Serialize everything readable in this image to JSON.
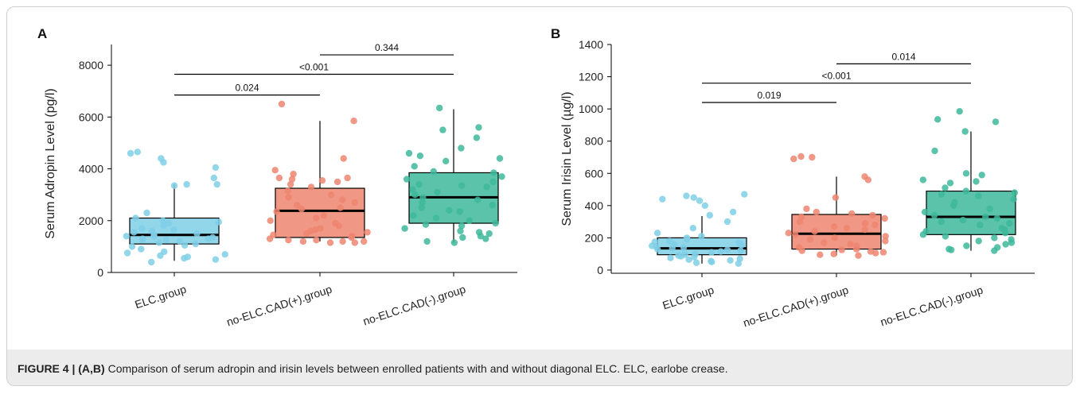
{
  "caption": {
    "label": "FIGURE 4 | (A,B)",
    "text": " Comparison of serum adropin and irisin levels between enrolled patients with and without diagonal ELC. ELC, earlobe crease."
  },
  "colors": {
    "ELC": "#7fcfe6",
    "CADpos": "#ef8570",
    "CADneg": "#3eb89a"
  },
  "chart_data": [
    {
      "type": "box",
      "panel": "A",
      "ylabel": "Serum Adropin Level (pg/l)",
      "xlabel": "",
      "ylim": [
        0,
        8800
      ],
      "yticks": [
        0,
        2000,
        4000,
        6000,
        8000
      ],
      "categories": [
        "ELC.group",
        "no-ELC.CAD(+).group",
        "no-ELC.CAD(-).group"
      ],
      "boxes": [
        {
          "q1": 1100,
          "median": 1450,
          "q3": 2100,
          "whisker_low": 450,
          "whisker_high": 3400
        },
        {
          "q1": 1350,
          "median": 2380,
          "q3": 3250,
          "whisker_low": 1200,
          "whisker_high": 5850
        },
        {
          "q1": 1900,
          "median": 2900,
          "q3": 3850,
          "whisker_low": 1150,
          "whisker_high": 6300
        }
      ],
      "points": [
        [
          3650,
          3400,
          4600,
          4250,
          4050,
          4650,
          4400,
          3350,
          3400,
          2300,
          2100,
          1950,
          1800,
          1700,
          1650,
          1600,
          1550,
          1500,
          1450,
          1400,
          1400,
          1350,
          1300,
          1300,
          1250,
          1250,
          1200,
          1150,
          1100,
          1050,
          1000,
          900,
          800,
          750,
          700,
          650,
          600,
          550,
          500,
          400,
          2000,
          1900
        ],
        [
          6500,
          5850,
          4400,
          3950,
          3800,
          3650,
          3650,
          3600,
          3550,
          3500,
          3400,
          3300,
          3150,
          3000,
          2900,
          2800,
          2700,
          2600,
          2500,
          2450,
          2350,
          2200,
          2100,
          2000,
          1900,
          1800,
          1700,
          1650,
          1600,
          1550,
          1500,
          1450,
          1400,
          1350,
          1300,
          1250,
          1250,
          1200,
          1200,
          1200,
          1150,
          1150
        ],
        [
          6350,
          5600,
          5500,
          5200,
          4800,
          4600,
          4500,
          4400,
          4300,
          4100,
          3900,
          3850,
          3700,
          3600,
          3500,
          3400,
          3350,
          3300,
          3200,
          3100,
          3000,
          2900,
          2800,
          2700,
          2600,
          2500,
          2400,
          2350,
          2200,
          2100,
          2000,
          1900,
          1850,
          1800,
          1700,
          1600,
          1550,
          1500,
          1400,
          1350,
          1300,
          1200,
          1150
        ]
      ],
      "comparisons": [
        {
          "from": 0,
          "to": 1,
          "y": 6850,
          "label": "0.024"
        },
        {
          "from": 0,
          "to": 2,
          "y": 7650,
          "label": "<0.001"
        },
        {
          "from": 1,
          "to": 2,
          "y": 8400,
          "label": "0.344"
        }
      ]
    },
    {
      "type": "box",
      "panel": "B",
      "ylabel": "Serum Irisin Level (µg/l)",
      "xlabel": "",
      "ylim": [
        -20,
        1400
      ],
      "yticks": [
        0,
        200,
        400,
        600,
        800,
        1000,
        1200,
        1400
      ],
      "categories": [
        "ELC.group",
        "no-ELC.CAD(+).group",
        "no-ELC.CAD(-).group"
      ],
      "boxes": [
        {
          "q1": 95,
          "median": 135,
          "q3": 200,
          "whisker_low": 40,
          "whisker_high": 335
        },
        {
          "q1": 130,
          "median": 225,
          "q3": 345,
          "whisker_low": 90,
          "whisker_high": 580
        },
        {
          "q1": 220,
          "median": 330,
          "q3": 490,
          "whisker_low": 120,
          "whisker_high": 860
        }
      ],
      "points": [
        [
          470,
          460,
          450,
          440,
          430,
          400,
          360,
          340,
          300,
          260,
          230,
          210,
          200,
          190,
          180,
          175,
          170,
          160,
          155,
          150,
          145,
          140,
          135,
          130,
          125,
          120,
          115,
          110,
          100,
          95,
          90,
          85,
          80,
          75,
          70,
          65,
          60,
          55,
          50,
          45,
          40
        ],
        [
          705,
          700,
          690,
          580,
          560,
          450,
          380,
          360,
          350,
          340,
          330,
          320,
          300,
          290,
          280,
          270,
          260,
          250,
          240,
          230,
          220,
          210,
          200,
          190,
          180,
          170,
          160,
          150,
          140,
          130,
          125,
          120,
          115,
          110,
          105,
          100,
          95,
          90
        ],
        [
          985,
          935,
          920,
          860,
          740,
          600,
          590,
          560,
          550,
          540,
          510,
          490,
          480,
          470,
          460,
          440,
          420,
          400,
          380,
          360,
          340,
          330,
          320,
          310,
          300,
          290,
          280,
          260,
          250,
          240,
          230,
          220,
          210,
          200,
          190,
          180,
          170,
          160,
          150,
          140,
          130,
          125,
          120
        ]
      ],
      "comparisons": [
        {
          "from": 0,
          "to": 1,
          "y": 1040,
          "label": "0.019"
        },
        {
          "from": 0,
          "to": 2,
          "y": 1160,
          "label": "<0.001"
        },
        {
          "from": 1,
          "to": 2,
          "y": 1280,
          "label": "0.014"
        }
      ]
    }
  ]
}
